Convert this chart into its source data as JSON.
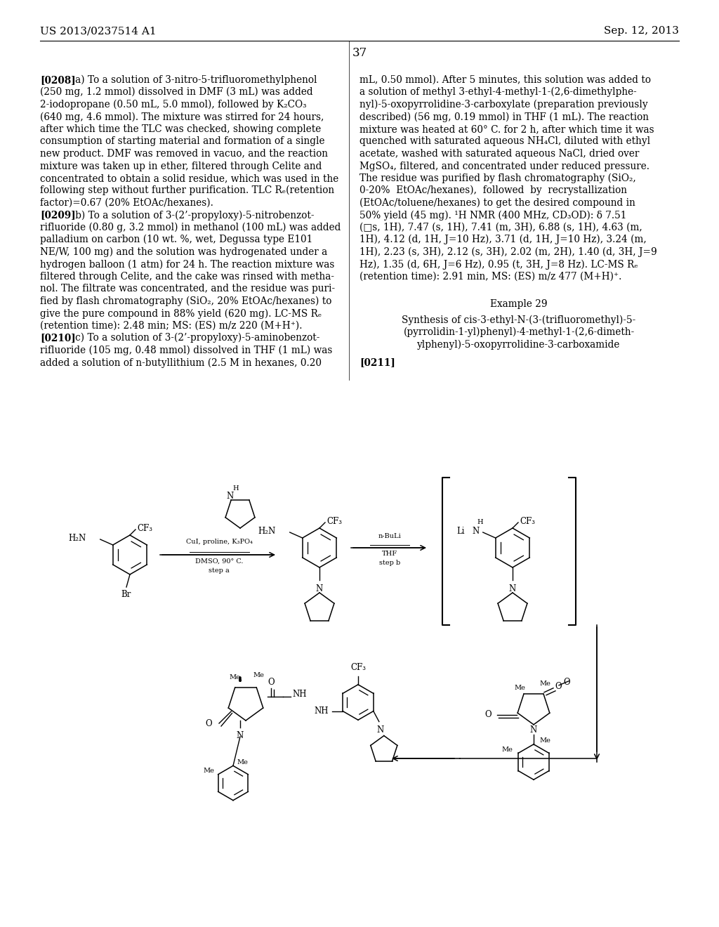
{
  "page_header_left": "US 2013/0237514 A1",
  "page_header_right": "Sep. 12, 2013",
  "page_number": "37",
  "background_color": "#ffffff",
  "text_color": "#000000",
  "left_col_lines": [
    "[0208]   a) To a solution of 3-nitro-5-trifluoromethylphenol",
    "(250 mg, 1.2 mmol) dissolved in DMF (3 mL) was added",
    "2-iodopropane (0.50 mL, 5.0 mmol), followed by K₂CO₃",
    "(640 mg, 4.6 mmol). The mixture was stirred for 24 hours,",
    "after which time the TLC was checked, showing complete",
    "consumption of starting material and formation of a single",
    "new product. DMF was removed in vacuo, and the reaction",
    "mixture was taken up in ether, filtered through Celite and",
    "concentrated to obtain a solid residue, which was used in the",
    "following step without further purification. TLC Rₑ(retention",
    "factor)=0.67 (20% EtOAc/hexanes).",
    "[0209]   b) To a solution of 3-(2’-propyloxy)-5-nitrobenzot-",
    "rifluoride (0.80 g, 3.2 mmol) in methanol (100 mL) was added",
    "palladium on carbon (10 wt. %, wet, Degussa type E101",
    "NE/W, 100 mg) and the solution was hydrogenated under a",
    "hydrogen balloon (1 atm) for 24 h. The reaction mixture was",
    "filtered through Celite, and the cake was rinsed with metha-",
    "nol. The filtrate was concentrated, and the residue was puri-",
    "fied by flash chromatography (SiO₂, 20% EtOAc/hexanes) to",
    "give the pure compound in 88% yield (620 mg). LC-MS Rₑ",
    "(retention time): 2.48 min; MS: (ES) m/z 220 (M+H⁺).",
    "[0210]   c) To a solution of 3-(2’-propyloxy)-5-aminobenzot-",
    "rifluoride (105 mg, 0.48 mmol) dissolved in THF (1 mL) was",
    "added a solution of n-butyllithium (2.5 M in hexanes, 0.20"
  ],
  "right_col_lines": [
    "mL, 0.50 mmol). After 5 minutes, this solution was added to",
    "a solution of methyl 3-ethyl-4-methyl-1-(2,6-dimethylphe-",
    "nyl)-5-oxopyrrolidine-3-carboxylate (preparation previously",
    "described) (56 mg, 0.19 mmol) in THF (1 mL). The reaction",
    "mixture was heated at 60° C. for 2 h, after which time it was",
    "quenched with saturated aqueous NH₄Cl, diluted with ethyl",
    "acetate, washed with saturated aqueous NaCl, dried over",
    "MgSO₄, filtered, and concentrated under reduced pressure.",
    "The residue was purified by flash chromatography (SiO₂,",
    "0-20%  EtOAc/hexanes),  followed  by  recrystallization",
    "(EtOAc/toluene/hexanes) to get the desired compound in",
    "50% yield (45 mg). ¹H NMR (400 MHz, CD₃OD): δ 7.51",
    "(□s, 1H), 7.47 (s, 1H), 7.41 (m, 3H), 6.88 (s, 1H), 4.63 (m,",
    "1H), 4.12 (d, 1H, J=10 Hz), 3.71 (d, 1H, J=10 Hz), 3.24 (m,",
    "1H), 2.23 (s, 3H), 2.12 (s, 3H), 2.02 (m, 2H), 1.40 (d, 3H, J=9",
    "Hz), 1.35 (d, 6H, J=6 Hz), 0.95 (t, 3H, J=8 Hz). LC-MS Rₑ",
    "(retention time): 2.91 min, MS: (ES) m/z 477 (M+H)⁺."
  ],
  "example29_title": "Example 29",
  "example29_lines": [
    "Synthesis of cis-3-ethyl-N-(3-(trifluoromethyl)-5-",
    "(pyrrolidin-1-yl)phenyl)-4-methyl-1-(2,6-dimeth-",
    "ylphenyl)-5-oxopyrrolidine-3-carboxamide"
  ],
  "tag0211": "[0211]"
}
